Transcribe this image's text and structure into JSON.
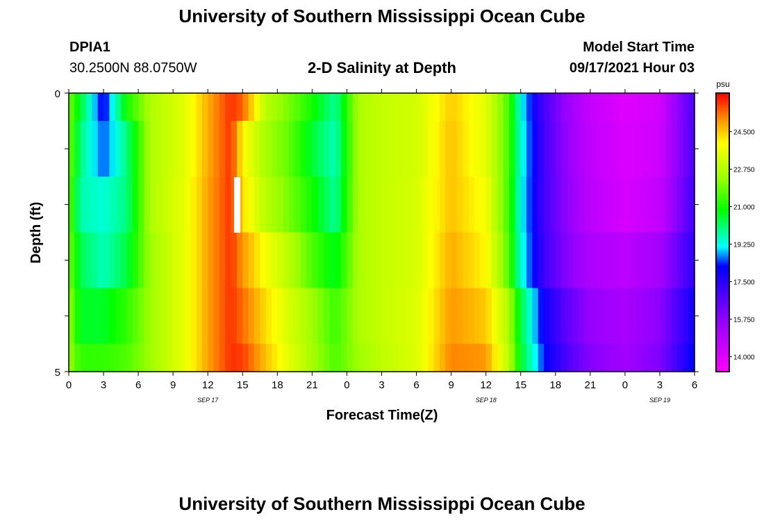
{
  "title": "University of Southern Mississippi Ocean Cube",
  "footer_title": "University of Southern Mississippi Ocean Cube",
  "station": {
    "id": "DPIA1",
    "coords": "30.2500N  88.0750W"
  },
  "plot_title": "2-D Salinity at Depth",
  "model": {
    "label": "Model Start Time",
    "time": "09/17/2021 Hour 03"
  },
  "chart_data": {
    "type": "heatmap",
    "title": "2-D Salinity at Depth",
    "xlabel": "Forecast Time(Z)",
    "ylabel": "Depth (ft)",
    "x_tick_labels": [
      "0",
      "3",
      "6",
      "9",
      "12",
      "15",
      "18",
      "21",
      "0",
      "3",
      "6",
      "9",
      "12",
      "15",
      "18",
      "21",
      "0",
      "3",
      "6"
    ],
    "x_dates": [
      {
        "label": "SEP 17",
        "hour_index": 12
      },
      {
        "label": "SEP 18",
        "hour_index": 36
      },
      {
        "label": "SEP 19",
        "hour_index": 51
      }
    ],
    "x_range_hours": [
      0,
      54
    ],
    "y_range_ft": [
      0,
      5
    ],
    "y_tick_labels": [
      "0",
      "5"
    ],
    "colorbar": {
      "unit": "psu",
      "ticks": [
        "24.500",
        "22.750",
        "21.000",
        "19.250",
        "17.500",
        "15.750",
        "14.000"
      ],
      "range": [
        13.3,
        26.3
      ]
    },
    "depth_levels_ft": [
      0,
      0.5,
      1.5,
      2.5,
      3.5,
      4.5
    ],
    "salinity_key_hours": [
      0,
      1,
      3,
      5,
      7,
      10,
      12,
      14,
      15,
      17,
      19,
      21,
      23,
      25,
      27,
      30,
      33,
      36,
      38,
      39,
      41,
      43,
      45,
      48,
      51,
      54
    ],
    "salinity_psu": [
      [
        22.0,
        20.5,
        18.0,
        21.0,
        22.6,
        23.5,
        24.8,
        25.9,
        25.5,
        22.8,
        22.0,
        21.0,
        19.8,
        22.6,
        23.0,
        23.2,
        24.5,
        23.5,
        21.5,
        19.3,
        17.0,
        15.5,
        14.6,
        14.0,
        14.3,
        17.0
      ],
      [
        22.0,
        20.0,
        18.5,
        20.0,
        22.6,
        23.5,
        24.8,
        25.9,
        24.0,
        22.5,
        21.8,
        20.5,
        19.6,
        22.6,
        23.0,
        23.2,
        24.6,
        23.5,
        21.5,
        19.4,
        17.1,
        15.6,
        14.7,
        14.1,
        14.4,
        17.0
      ],
      [
        21.8,
        19.7,
        19.4,
        20.0,
        22.6,
        23.6,
        24.9,
        25.9,
        24.3,
        22.8,
        22.0,
        21.0,
        19.8,
        22.6,
        23.0,
        23.3,
        24.6,
        23.8,
        21.4,
        19.3,
        17.1,
        15.7,
        14.8,
        14.2,
        14.6,
        17.2
      ],
      [
        22.0,
        20.3,
        19.6,
        20.4,
        22.4,
        23.6,
        24.9,
        25.9,
        25.0,
        23.8,
        22.8,
        21.6,
        20.6,
        22.6,
        23.0,
        23.3,
        24.8,
        24.0,
        21.6,
        19.4,
        17.2,
        15.9,
        15.1,
        14.8,
        15.3,
        17.5
      ],
      [
        22.4,
        20.6,
        20.6,
        21.3,
        22.4,
        23.6,
        24.9,
        25.9,
        25.4,
        24.3,
        23.3,
        22.4,
        21.4,
        22.6,
        23.0,
        23.4,
        25.0,
        24.5,
        22.6,
        20.4,
        18.0,
        16.6,
        15.6,
        15.2,
        15.8,
        18.0
      ],
      [
        22.4,
        21.3,
        21.3,
        21.6,
        22.4,
        23.6,
        24.9,
        25.9,
        25.8,
        24.6,
        23.5,
        22.5,
        21.6,
        22.4,
        22.9,
        23.4,
        25.2,
        25.0,
        22.8,
        20.6,
        18.3,
        16.9,
        15.9,
        15.4,
        16.0,
        18.3
      ]
    ]
  }
}
